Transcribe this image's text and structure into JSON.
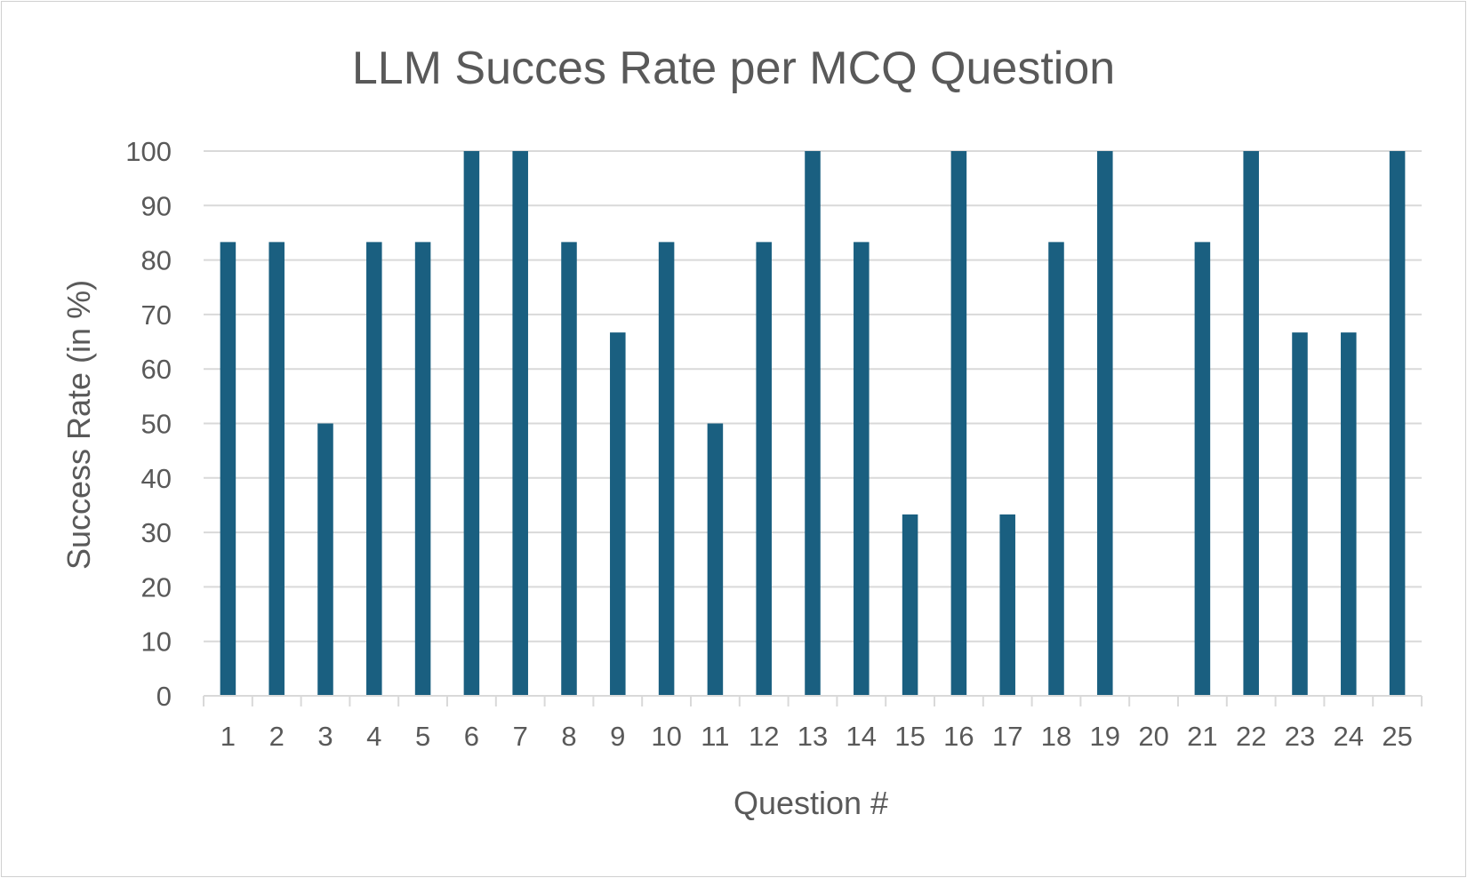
{
  "chart_data": {
    "type": "bar",
    "title": "LLM Succes Rate per MCQ Question",
    "xlabel": "Question #",
    "ylabel": "Success Rate (in %)",
    "ylim": [
      0,
      100
    ],
    "yticks": [
      0,
      10,
      20,
      30,
      40,
      50,
      60,
      70,
      80,
      90,
      100
    ],
    "grid": true,
    "legend": "none",
    "categories": [
      "1",
      "2",
      "3",
      "4",
      "5",
      "6",
      "7",
      "8",
      "9",
      "10",
      "11",
      "12",
      "13",
      "14",
      "15",
      "16",
      "17",
      "18",
      "19",
      "20",
      "21",
      "22",
      "23",
      "24",
      "25"
    ],
    "series": [
      {
        "color": "#1a5f80",
        "values": [
          83.3,
          83.3,
          50,
          83.3,
          83.3,
          100,
          100,
          83.3,
          66.7,
          83.3,
          50,
          83.3,
          100,
          83.3,
          33.3,
          100,
          33.3,
          83.3,
          100,
          0,
          83.3,
          100,
          66.7,
          66.7,
          100
        ]
      }
    ]
  }
}
